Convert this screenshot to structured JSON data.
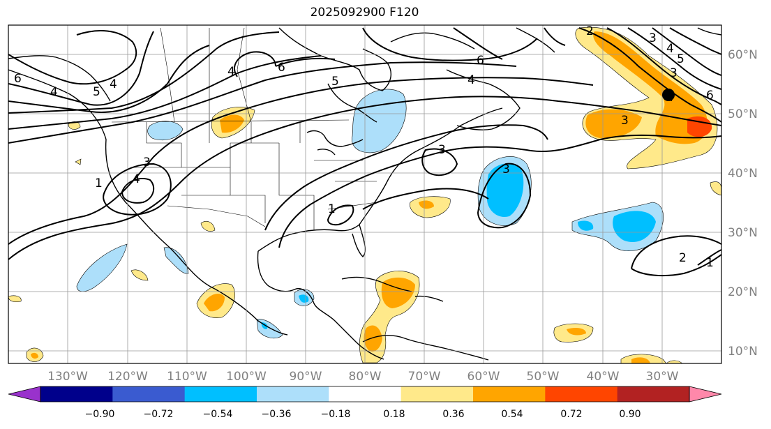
{
  "title": "2025092900 F120",
  "map": {
    "lon_ticks": [
      "130°W",
      "120°W",
      "110°W",
      "100°W",
      "90°W",
      "80°W",
      "70°W",
      "60°W",
      "50°W",
      "40°W",
      "30°W"
    ],
    "lat_ticks": [
      "60°N",
      "50°N",
      "40°N",
      "30°N",
      "20°N",
      "10°N"
    ],
    "contour_labels": [
      "6",
      "4",
      "5",
      "4",
      "6",
      "5",
      "4",
      "6",
      "4",
      "3",
      "1",
      "4",
      "3",
      "3",
      "3",
      "4",
      "3",
      "2",
      "1",
      "1",
      "2",
      "3",
      "4",
      "5",
      "6"
    ],
    "marker": "storm-center"
  },
  "colorbar": {
    "ticks": [
      "−0.90",
      "−0.72",
      "−0.54",
      "−0.36",
      "−0.18",
      "0.18",
      "0.36",
      "0.54",
      "0.72",
      "0.90"
    ],
    "colors": [
      "#9932CC",
      "#00008B",
      "#3A5BD0",
      "#00BFFF",
      "#ADDFFA",
      "#FFFFFF",
      "#FFE98A",
      "#FFA500",
      "#FF4500",
      "#B22222",
      "#FF88AA"
    ]
  },
  "colors": {
    "grid": "#999999",
    "coast": "#000000"
  }
}
